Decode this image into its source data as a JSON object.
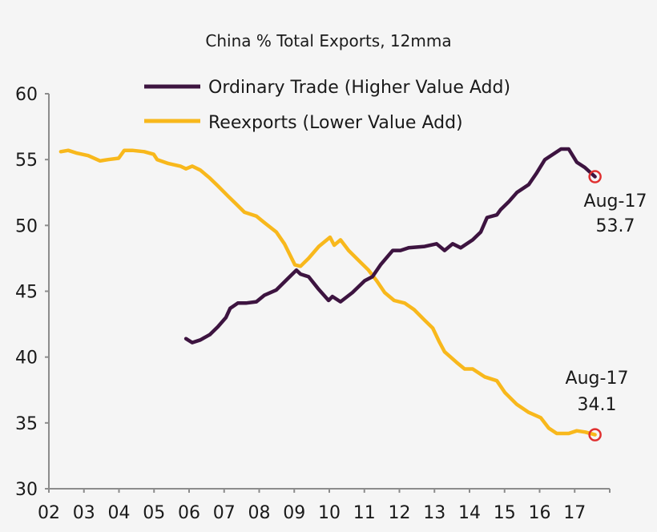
{
  "chart_data": {
    "type": "line",
    "title": "China % Total Exports, 12mma",
    "xlabel": "",
    "ylabel": "",
    "ylim": [
      30,
      60
    ],
    "yticks": [
      "30",
      "35",
      "40",
      "45",
      "50",
      "55",
      "60"
    ],
    "xlim": [
      2002,
      2018
    ],
    "xtick_labels": [
      "02",
      "03",
      "04",
      "05",
      "06",
      "07",
      "08",
      "09",
      "10",
      "11",
      "12",
      "13",
      "14",
      "15",
      "16",
      "17"
    ],
    "grid": false,
    "legend_position": "top-center",
    "series": [
      {
        "name": "Ordinary Trade (Higher Value Add)",
        "color": "#3d1440",
        "points": [
          [
            2005.91,
            41.4
          ],
          [
            2006.09,
            41.1
          ],
          [
            2006.32,
            41.3
          ],
          [
            2006.59,
            41.7
          ],
          [
            2006.82,
            42.3
          ],
          [
            2007.05,
            43.0
          ],
          [
            2007.17,
            43.7
          ],
          [
            2007.39,
            44.1
          ],
          [
            2007.62,
            44.1
          ],
          [
            2007.92,
            44.2
          ],
          [
            2008.15,
            44.7
          ],
          [
            2008.49,
            45.1
          ],
          [
            2008.83,
            46.0
          ],
          [
            2009.06,
            46.6
          ],
          [
            2009.18,
            46.3
          ],
          [
            2009.41,
            46.1
          ],
          [
            2009.68,
            45.2
          ],
          [
            2009.98,
            44.3
          ],
          [
            2010.09,
            44.6
          ],
          [
            2010.32,
            44.2
          ],
          [
            2010.66,
            44.9
          ],
          [
            2011.01,
            45.8
          ],
          [
            2011.23,
            46.1
          ],
          [
            2011.46,
            47.0
          ],
          [
            2011.81,
            48.1
          ],
          [
            2012.03,
            48.1
          ],
          [
            2012.26,
            48.3
          ],
          [
            2012.72,
            48.4
          ],
          [
            2013.06,
            48.6
          ],
          [
            2013.29,
            48.1
          ],
          [
            2013.52,
            48.6
          ],
          [
            2013.75,
            48.3
          ],
          [
            2014.09,
            48.9
          ],
          [
            2014.32,
            49.5
          ],
          [
            2014.5,
            50.6
          ],
          [
            2014.78,
            50.8
          ],
          [
            2014.89,
            51.2
          ],
          [
            2015.12,
            51.8
          ],
          [
            2015.35,
            52.5
          ],
          [
            2015.69,
            53.1
          ],
          [
            2015.92,
            54.0
          ],
          [
            2016.15,
            55.0
          ],
          [
            2016.61,
            55.8
          ],
          [
            2016.83,
            55.8
          ],
          [
            2017.06,
            54.8
          ],
          [
            2017.29,
            54.4
          ],
          [
            2017.58,
            53.7
          ]
        ],
        "annotation": {
          "label": "Aug-17",
          "value": "53.7"
        }
      },
      {
        "name": "Reexports (Lower Value Add)",
        "color": "#f8b81c",
        "points": [
          [
            2002.34,
            55.6
          ],
          [
            2002.55,
            55.7
          ],
          [
            2002.78,
            55.5
          ],
          [
            2003.12,
            55.3
          ],
          [
            2003.46,
            54.9
          ],
          [
            2003.69,
            55.0
          ],
          [
            2003.99,
            55.1
          ],
          [
            2004.15,
            55.7
          ],
          [
            2004.38,
            55.7
          ],
          [
            2004.72,
            55.6
          ],
          [
            2004.99,
            55.4
          ],
          [
            2005.09,
            55.0
          ],
          [
            2005.41,
            54.7
          ],
          [
            2005.75,
            54.5
          ],
          [
            2005.91,
            54.3
          ],
          [
            2006.09,
            54.5
          ],
          [
            2006.32,
            54.2
          ],
          [
            2006.59,
            53.6
          ],
          [
            2006.82,
            53.0
          ],
          [
            2007.12,
            52.2
          ],
          [
            2007.35,
            51.6
          ],
          [
            2007.58,
            51.0
          ],
          [
            2007.92,
            50.7
          ],
          [
            2008.15,
            50.2
          ],
          [
            2008.49,
            49.5
          ],
          [
            2008.72,
            48.6
          ],
          [
            2009.02,
            47.0
          ],
          [
            2009.18,
            46.9
          ],
          [
            2009.41,
            47.5
          ],
          [
            2009.7,
            48.4
          ],
          [
            2010.02,
            49.1
          ],
          [
            2010.14,
            48.5
          ],
          [
            2010.32,
            48.9
          ],
          [
            2010.55,
            48.1
          ],
          [
            2010.89,
            47.2
          ],
          [
            2011.12,
            46.6
          ],
          [
            2011.35,
            45.8
          ],
          [
            2011.58,
            44.9
          ],
          [
            2011.85,
            44.3
          ],
          [
            2012.15,
            44.1
          ],
          [
            2012.42,
            43.6
          ],
          [
            2012.72,
            42.8
          ],
          [
            2012.95,
            42.2
          ],
          [
            2013.13,
            41.2
          ],
          [
            2013.29,
            40.4
          ],
          [
            2013.63,
            39.6
          ],
          [
            2013.86,
            39.1
          ],
          [
            2014.09,
            39.1
          ],
          [
            2014.43,
            38.5
          ],
          [
            2014.78,
            38.2
          ],
          [
            2015.01,
            37.3
          ],
          [
            2015.35,
            36.4
          ],
          [
            2015.69,
            35.8
          ],
          [
            2016.03,
            35.4
          ],
          [
            2016.26,
            34.6
          ],
          [
            2016.49,
            34.2
          ],
          [
            2016.83,
            34.2
          ],
          [
            2017.06,
            34.4
          ],
          [
            2017.3,
            34.3
          ],
          [
            2017.58,
            34.1
          ]
        ],
        "annotation": {
          "label": "Aug-17",
          "value": "34.1"
        }
      }
    ],
    "marker_color": "#e03030"
  }
}
